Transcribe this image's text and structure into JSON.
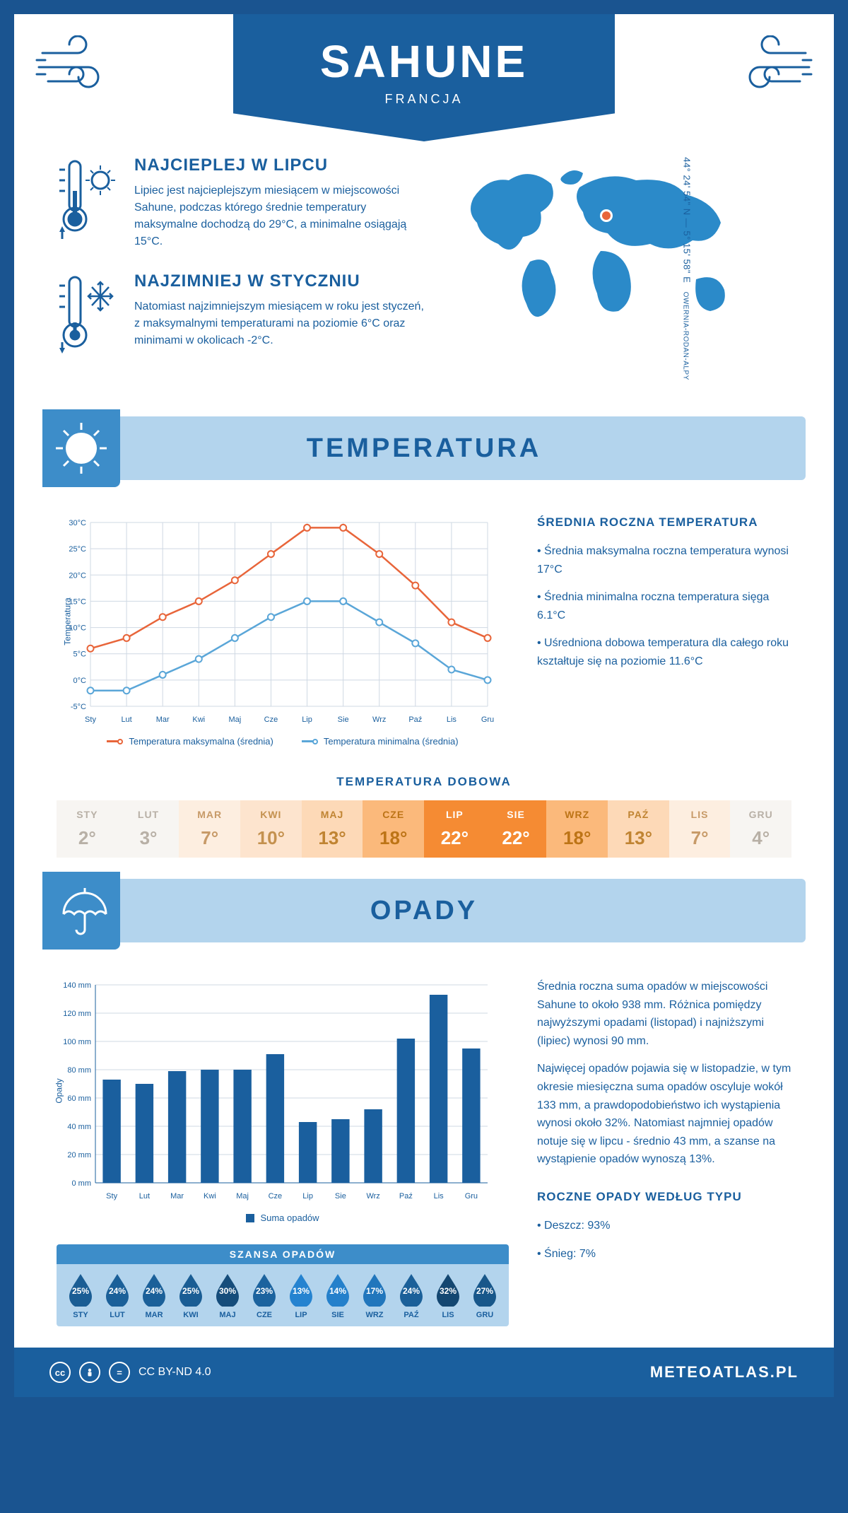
{
  "header": {
    "title": "SAHUNE",
    "country": "FRANCJA"
  },
  "coords": "44° 24' 54\" N — 5° 15' 58\" E",
  "region": "OWERNIA-RODAN-ALPY",
  "info": {
    "hot": {
      "title": "NAJCIEPLEJ W LIPCU",
      "text": "Lipiec jest najcieplejszym miesiącem w miejscowości Sahune, podczas którego średnie temperatury maksymalne dochodzą do 29°C, a minimalne osiągają 15°C."
    },
    "cold": {
      "title": "NAJZIMNIEJ W STYCZNIU",
      "text": "Natomiast najzimniejszym miesiącem w roku jest styczeń, z maksymalnymi temperaturami na poziomie 6°C oraz minimami w okolicach -2°C."
    }
  },
  "sections": {
    "temp": "TEMPERATURA",
    "precip": "OPADY"
  },
  "temp_chart": {
    "months": [
      "Sty",
      "Lut",
      "Mar",
      "Kwi",
      "Maj",
      "Cze",
      "Lip",
      "Sie",
      "Wrz",
      "Paź",
      "Lis",
      "Gru"
    ],
    "y_ticks": [
      -5,
      0,
      5,
      10,
      15,
      20,
      25,
      30
    ],
    "y_labels": [
      "-5°C",
      "0°C",
      "5°C",
      "10°C",
      "15°C",
      "20°C",
      "25°C",
      "30°C"
    ],
    "ylim": [
      -5,
      30
    ],
    "y_title": "Temperatura",
    "max_series": [
      6,
      8,
      12,
      15,
      19,
      24,
      29,
      29,
      24,
      18,
      11,
      8
    ],
    "min_series": [
      -2,
      -2,
      1,
      4,
      8,
      12,
      15,
      15,
      11,
      7,
      2,
      0
    ],
    "max_color": "#e8653a",
    "min_color": "#5aa6d8",
    "legend_max": "Temperatura maksymalna (średnia)",
    "legend_min": "Temperatura minimalna (średnia)"
  },
  "temp_side": {
    "title": "ŚREDNIA ROCZNA TEMPERATURA",
    "p1": "• Średnia maksymalna roczna temperatura wynosi 17°C",
    "p2": "• Średnia minimalna roczna temperatura sięga 6.1°C",
    "p3": "• Uśredniona dobowa temperatura dla całego roku kształtuje się na poziomie 11.6°C"
  },
  "daily": {
    "title": "TEMPERATURA DOBOWA",
    "months": [
      "STY",
      "LUT",
      "MAR",
      "KWI",
      "MAJ",
      "CZE",
      "LIP",
      "SIE",
      "WRZ",
      "PAŹ",
      "LIS",
      "GRU"
    ],
    "values": [
      "2°",
      "3°",
      "7°",
      "10°",
      "13°",
      "18°",
      "22°",
      "22°",
      "18°",
      "13°",
      "7°",
      "4°"
    ],
    "bg_colors": [
      "#f7f5f2",
      "#f7f5f2",
      "#fdeee0",
      "#fde4ce",
      "#fdd9b7",
      "#fbb97b",
      "#f58b33",
      "#f58b33",
      "#fbb97b",
      "#fdd9b7",
      "#fdeee0",
      "#f7f5f2"
    ],
    "fg_colors": [
      "#b8b0a6",
      "#b8b0a6",
      "#c79a68",
      "#c4914f",
      "#c08432",
      "#bd7416",
      "#ffffff",
      "#ffffff",
      "#bd7416",
      "#c08432",
      "#c79a68",
      "#b8b0a6"
    ]
  },
  "precip_chart": {
    "months": [
      "Sty",
      "Lut",
      "Mar",
      "Kwi",
      "Maj",
      "Cze",
      "Lip",
      "Sie",
      "Wrz",
      "Paź",
      "Lis",
      "Gru"
    ],
    "values": [
      73,
      70,
      79,
      80,
      80,
      91,
      43,
      45,
      52,
      102,
      133,
      95
    ],
    "y_ticks": [
      0,
      20,
      40,
      60,
      80,
      100,
      120,
      140
    ],
    "y_labels": [
      "0 mm",
      "20 mm",
      "40 mm",
      "60 mm",
      "80 mm",
      "100 mm",
      "120 mm",
      "140 mm"
    ],
    "ylim": [
      0,
      140
    ],
    "y_title": "Opady",
    "bar_color": "#1a5f9e",
    "legend": "Suma opadów"
  },
  "precip_side": {
    "p1": "Średnia roczna suma opadów w miejscowości Sahune to około 938 mm. Różnica pomiędzy najwyższymi opadami (listopad) i najniższymi (lipiec) wynosi 90 mm.",
    "p2": "Najwięcej opadów pojawia się w listopadzie, w tym okresie miesięczna suma opadów oscyluje wokół 133 mm, a prawdopodobieństwo ich wystąpienia wynosi około 32%. Natomiast najmniej opadów notuje się w lipcu - średnio 43 mm, a szanse na wystąpienie opadów wynoszą 13%."
  },
  "chance": {
    "title": "SZANSA OPADÓW",
    "months": [
      "STY",
      "LUT",
      "MAR",
      "KWI",
      "MAJ",
      "CZE",
      "LIP",
      "SIE",
      "WRZ",
      "PAŹ",
      "LIS",
      "GRU"
    ],
    "values": [
      "25%",
      "24%",
      "24%",
      "25%",
      "30%",
      "23%",
      "13%",
      "14%",
      "17%",
      "24%",
      "32%",
      "27%"
    ],
    "raw": [
      25,
      24,
      24,
      25,
      30,
      23,
      13,
      14,
      17,
      24,
      32,
      27
    ]
  },
  "precip_type": {
    "title": "ROCZNE OPADY WEDŁUG TYPU",
    "rain": "• Deszcz: 93%",
    "snow": "• Śnieg: 7%"
  },
  "footer": {
    "license": "CC BY-ND 4.0",
    "site": "METEOATLAS.PL"
  },
  "colors": {
    "primary": "#1a5f9e",
    "light_blue": "#b3d4ed",
    "mid_blue": "#3d8dc9",
    "map_blue": "#2b8ac9",
    "marker": "#e8653a"
  }
}
